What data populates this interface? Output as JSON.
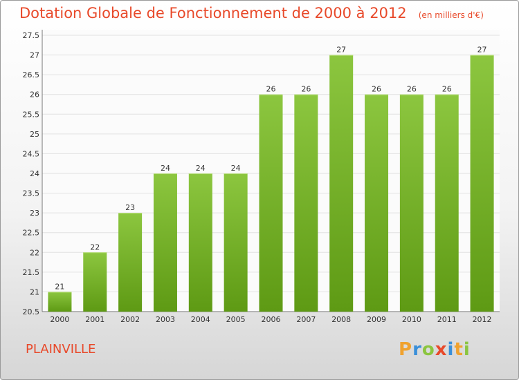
{
  "chart_data": {
    "type": "bar",
    "title": "Dotation Globale de Fonctionnement de 2000 à 2012",
    "subtitle": "(en milliers d'€)",
    "categories": [
      "2000",
      "2001",
      "2002",
      "2003",
      "2004",
      "2005",
      "2006",
      "2007",
      "2008",
      "2009",
      "2010",
      "2011",
      "2012"
    ],
    "values": [
      21,
      22,
      23,
      24,
      24,
      24,
      26,
      26,
      27,
      26,
      26,
      26,
      27
    ],
    "data_labels": [
      "21",
      "22",
      "23",
      "24",
      "24",
      "24",
      "26",
      "26",
      "27",
      "26",
      "26",
      "26",
      "27"
    ],
    "xlabel": "",
    "ylabel": "",
    "ylim": [
      20.5,
      27.5
    ],
    "yticks": [
      "20.5",
      "21",
      "21.5",
      "22",
      "22.5",
      "23",
      "23.5",
      "24",
      "24.5",
      "25",
      "25.5",
      "26",
      "26.5",
      "27",
      "27.5"
    ],
    "grid": true,
    "bar_color": "#8cc63f",
    "bar_color_dark": "#5e9a14"
  },
  "footer": {
    "place": "PLAINVILLE",
    "brand_letters": [
      {
        "ch": "P",
        "color": "#f0a22e"
      },
      {
        "ch": "r",
        "color": "#3a8fd9"
      },
      {
        "ch": "o",
        "color": "#8bc53f"
      },
      {
        "ch": "x",
        "color": "#e8492a"
      },
      {
        "ch": "i",
        "color": "#3a8fd9"
      },
      {
        "ch": "t",
        "color": "#f0a22e"
      },
      {
        "ch": "i",
        "color": "#8bc53f"
      }
    ]
  }
}
